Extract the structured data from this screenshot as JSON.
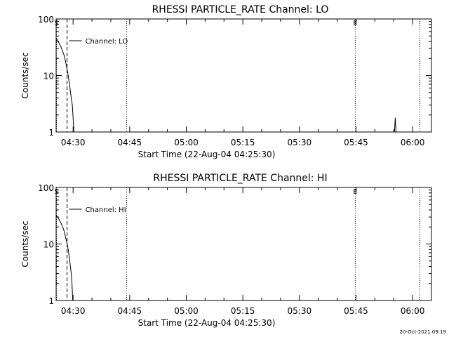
{
  "footer": {
    "timestamp": "20-Oct-2021 09:19"
  },
  "chart_data": [
    {
      "type": "line",
      "title": "RHESSI PARTICLE_RATE Channel: LO",
      "xlabel": "Start Time (22-Aug-04 04:25:30)",
      "ylabel": "Counts/sec",
      "x_unit": "minutes after 04:25:30",
      "xlim": [
        0,
        99.5
      ],
      "ylim": [
        1,
        100
      ],
      "yscale": "log",
      "x_ticks": [
        {
          "label": "04:30",
          "value": 4.5
        },
        {
          "label": "04:45",
          "value": 19.5
        },
        {
          "label": "05:00",
          "value": 34.5
        },
        {
          "label": "05:15",
          "value": 49.5
        },
        {
          "label": "05:30",
          "value": 64.5
        },
        {
          "label": "05:45",
          "value": 79.5
        },
        {
          "label": "06:00",
          "value": 94.5
        }
      ],
      "y_ticks": [
        {
          "label": "1",
          "value": 1
        },
        {
          "label": "10",
          "value": 10
        },
        {
          "label": "100",
          "value": 100
        }
      ],
      "legend": {
        "label": "Channel: LO",
        "placement": "top-left"
      },
      "markers": [
        {
          "label": "S",
          "x": 0.1,
          "style": "dotted"
        },
        {
          "label": "",
          "x": 2.9,
          "style": "dashed"
        },
        {
          "label": "",
          "x": 18.7,
          "style": "dotted"
        },
        {
          "label": "E",
          "x": 79.3,
          "style": "dotted"
        },
        {
          "label": "",
          "x": 96.4,
          "style": "dotted"
        }
      ],
      "series": [
        {
          "x": [
            0,
            0.4,
            0.8,
            1.2,
            1.6,
            2.0,
            2.4,
            2.8,
            3.2,
            3.6,
            4.0,
            4.3,
            4.6,
            4.7
          ],
          "y": [
            45,
            42,
            37,
            33,
            28,
            24,
            19,
            14,
            10,
            6.5,
            4,
            3,
            1.4,
            1
          ]
        },
        {
          "x": [
            89.7,
            89.9,
            90.1
          ],
          "y": [
            1,
            1.8,
            1
          ]
        }
      ]
    },
    {
      "type": "line",
      "title": "RHESSI PARTICLE_RATE Channel: HI",
      "xlabel": "Start Time (22-Aug-04 04:25:30)",
      "ylabel": "Counts/sec",
      "x_unit": "minutes after 04:25:30",
      "xlim": [
        0,
        99.5
      ],
      "ylim": [
        1,
        100
      ],
      "yscale": "log",
      "x_ticks": [
        {
          "label": "04:30",
          "value": 4.5
        },
        {
          "label": "04:45",
          "value": 19.5
        },
        {
          "label": "05:00",
          "value": 34.5
        },
        {
          "label": "05:15",
          "value": 49.5
        },
        {
          "label": "05:30",
          "value": 64.5
        },
        {
          "label": "05:45",
          "value": 79.5
        },
        {
          "label": "06:00",
          "value": 94.5
        }
      ],
      "y_ticks": [
        {
          "label": "1",
          "value": 1
        },
        {
          "label": "10",
          "value": 10
        },
        {
          "label": "100",
          "value": 100
        }
      ],
      "legend": {
        "label": "Channel: HI",
        "placement": "top-left"
      },
      "markers": [
        {
          "label": "S",
          "x": 0.1,
          "style": "dotted"
        },
        {
          "label": "",
          "x": 2.9,
          "style": "dashed"
        },
        {
          "label": "",
          "x": 18.7,
          "style": "dotted"
        },
        {
          "label": "E",
          "x": 79.3,
          "style": "dotted"
        },
        {
          "label": "",
          "x": 96.4,
          "style": "dotted"
        }
      ],
      "series": [
        {
          "x": [
            0,
            0.4,
            0.8,
            1.2,
            1.6,
            2.0,
            2.4,
            2.8,
            3.2,
            3.6,
            4.0,
            4.2,
            4.4
          ],
          "y": [
            32,
            30,
            27,
            24,
            21,
            18,
            14,
            11,
            8,
            5,
            3,
            2,
            1
          ]
        }
      ]
    }
  ]
}
